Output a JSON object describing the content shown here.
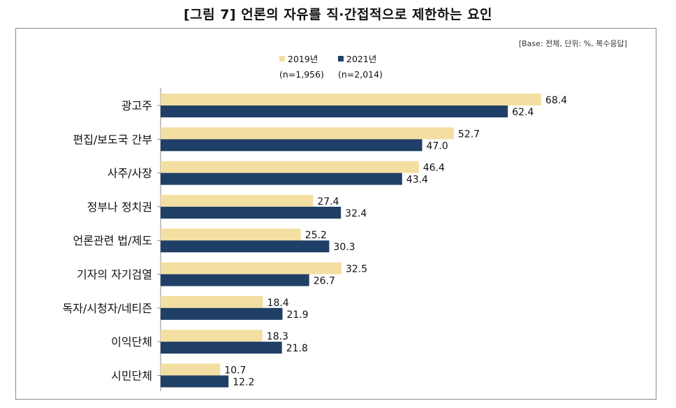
{
  "title": "[그림 7] 언론의 자유를 직·간접적으로 제한하는 요인",
  "base_note": "[Base: 전체, 단위: %, 복수응답]",
  "legend": [
    {
      "label": "2019년",
      "n": "(n=1,956)",
      "color": "#f3dfa2"
    },
    {
      "label": "2021년",
      "n": "(n=2,014)",
      "color": "#1f3f66"
    }
  ],
  "chart_data": {
    "type": "bar",
    "orientation": "horizontal",
    "categories": [
      "광고주",
      "편집/보도국 간부",
      "사주/사장",
      "정부나 정치권",
      "언론관련 법/제도",
      "기자의 자기검열",
      "독자/시청자/네티즌",
      "이익단체",
      "시민단체"
    ],
    "series": [
      {
        "name": "2019년",
        "values": [
          68.4,
          52.7,
          46.4,
          27.4,
          25.2,
          32.5,
          18.4,
          18.3,
          10.7
        ]
      },
      {
        "name": "2021년",
        "values": [
          62.4,
          47.0,
          43.4,
          32.4,
          30.3,
          26.7,
          21.9,
          21.8,
          12.2
        ]
      }
    ],
    "value_labels": [
      [
        "68.4",
        "52.7",
        "46.4",
        "27.4",
        "25.2",
        "32.5",
        "18.4",
        "18.3",
        "10.7"
      ],
      [
        "62.4",
        "47.0",
        "43.4",
        "32.4",
        "30.3",
        "26.7",
        "21.9",
        "21.8",
        "12.2"
      ]
    ],
    "xlim": [
      0,
      75
    ],
    "grid": false,
    "legend_position": "top-center"
  }
}
